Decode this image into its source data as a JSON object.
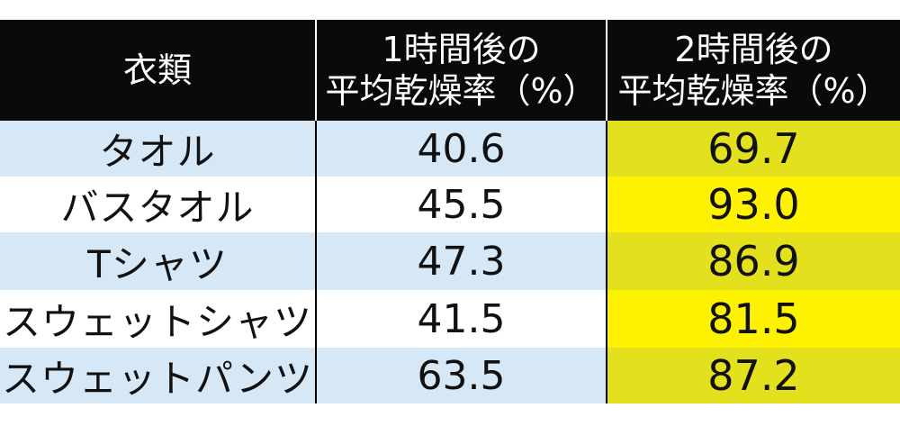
{
  "chart_data": {
    "type": "table",
    "columns": [
      "衣類",
      "1時間後の平均乾燥率（%）",
      "2時間後の平均乾燥率（%）"
    ],
    "header_lines": [
      [
        "衣類"
      ],
      [
        "1時間後の",
        "平均乾燥率（%）"
      ],
      [
        "2時間後の",
        "平均乾燥率（%）"
      ]
    ],
    "rows": [
      {
        "item": "タオル",
        "hour1": "40.6",
        "hour2": "69.7"
      },
      {
        "item": "バスタオル",
        "hour1": "45.5",
        "hour2": "93.0"
      },
      {
        "item": "Tシャツ",
        "hour1": "47.3",
        "hour2": "86.9"
      },
      {
        "item": "スウェットシャツ",
        "hour1": "41.5",
        "hour2": "81.5"
      },
      {
        "item": "スウェットパンツ",
        "hour1": "63.5",
        "hour2": "87.2"
      }
    ]
  },
  "colors": {
    "header_bg": "#0a0a0a",
    "header_text": "#ffffff",
    "row_blue": "#d6e7f5",
    "row_white": "#ffffff",
    "highlight_dark_yellow": "#e3e01e",
    "highlight_yellow": "#fff200"
  }
}
